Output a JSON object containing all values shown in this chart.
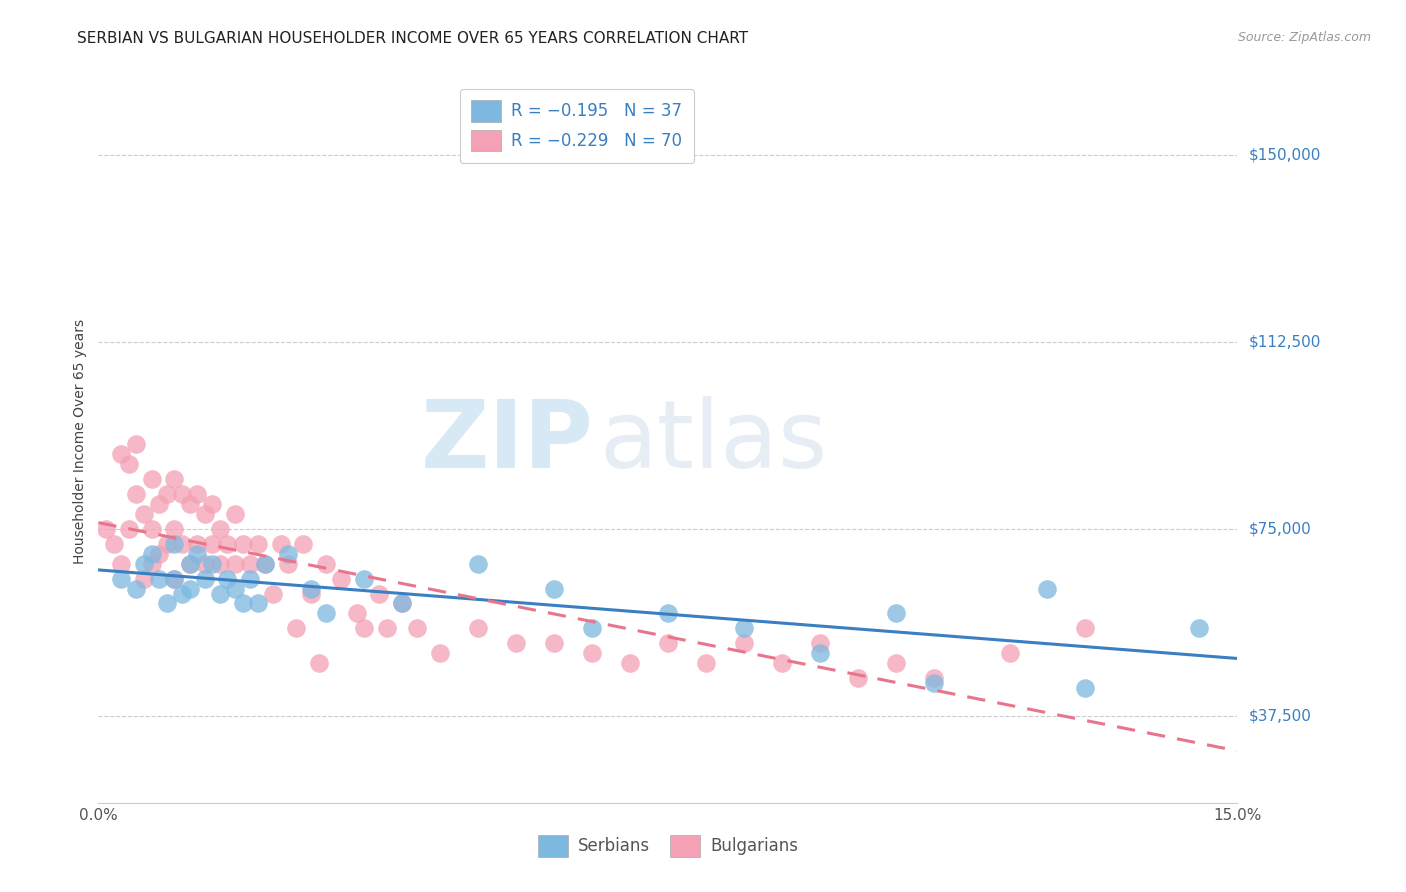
{
  "title": "SERBIAN VS BULGARIAN HOUSEHOLDER INCOME OVER 65 YEARS CORRELATION CHART",
  "source": "Source: ZipAtlas.com",
  "ylabel_ticks": [
    "$37,500",
    "$75,000",
    "$112,500",
    "$150,000"
  ],
  "ylabel_values": [
    37500,
    75000,
    112500,
    150000
  ],
  "xlim": [
    0.0,
    0.15
  ],
  "ylim": [
    20000,
    165000
  ],
  "ylabel": "Householder Income Over 65 years",
  "legend_entry1": "R = −0.195   N = 37",
  "legend_entry2": "R = −0.229   N = 70",
  "legend_label1": "Serbians",
  "legend_label2": "Bulgarians",
  "color_serbian": "#7db8e0",
  "color_bulgarian": "#f4a0b5",
  "color_line_serbian": "#3a7fc1",
  "color_line_bulgarian": "#e8758a",
  "watermark_zip": "ZIP",
  "watermark_atlas": "atlas",
  "title_fontsize": 11,
  "axis_label_fontsize": 10,
  "tick_fontsize": 11,
  "source_fontsize": 9,
  "serbian_x": [
    0.003,
    0.005,
    0.006,
    0.007,
    0.008,
    0.009,
    0.01,
    0.01,
    0.011,
    0.012,
    0.012,
    0.013,
    0.014,
    0.015,
    0.016,
    0.017,
    0.018,
    0.019,
    0.02,
    0.021,
    0.022,
    0.025,
    0.028,
    0.03,
    0.035,
    0.04,
    0.05,
    0.06,
    0.065,
    0.075,
    0.085,
    0.095,
    0.105,
    0.11,
    0.125,
    0.13,
    0.145
  ],
  "serbian_y": [
    65000,
    63000,
    68000,
    70000,
    65000,
    60000,
    72000,
    65000,
    62000,
    68000,
    63000,
    70000,
    65000,
    68000,
    62000,
    65000,
    63000,
    60000,
    65000,
    60000,
    68000,
    70000,
    63000,
    58000,
    65000,
    60000,
    68000,
    63000,
    55000,
    58000,
    55000,
    50000,
    58000,
    44000,
    63000,
    43000,
    55000
  ],
  "bulgarian_x": [
    0.001,
    0.002,
    0.003,
    0.003,
    0.004,
    0.004,
    0.005,
    0.005,
    0.006,
    0.006,
    0.007,
    0.007,
    0.007,
    0.008,
    0.008,
    0.009,
    0.009,
    0.01,
    0.01,
    0.01,
    0.011,
    0.011,
    0.012,
    0.012,
    0.013,
    0.013,
    0.014,
    0.014,
    0.015,
    0.015,
    0.016,
    0.016,
    0.017,
    0.018,
    0.018,
    0.019,
    0.02,
    0.021,
    0.022,
    0.023,
    0.024,
    0.025,
    0.026,
    0.027,
    0.028,
    0.029,
    0.03,
    0.032,
    0.034,
    0.035,
    0.037,
    0.038,
    0.04,
    0.042,
    0.045,
    0.05,
    0.055,
    0.06,
    0.065,
    0.07,
    0.075,
    0.08,
    0.085,
    0.09,
    0.095,
    0.1,
    0.105,
    0.11,
    0.12,
    0.13
  ],
  "bulgarian_y": [
    75000,
    72000,
    90000,
    68000,
    88000,
    75000,
    92000,
    82000,
    78000,
    65000,
    85000,
    75000,
    68000,
    80000,
    70000,
    82000,
    72000,
    85000,
    75000,
    65000,
    82000,
    72000,
    80000,
    68000,
    82000,
    72000,
    78000,
    68000,
    80000,
    72000,
    75000,
    68000,
    72000,
    78000,
    68000,
    72000,
    68000,
    72000,
    68000,
    62000,
    72000,
    68000,
    55000,
    72000,
    62000,
    48000,
    68000,
    65000,
    58000,
    55000,
    62000,
    55000,
    60000,
    55000,
    50000,
    55000,
    52000,
    52000,
    50000,
    48000,
    52000,
    48000,
    52000,
    48000,
    52000,
    45000,
    48000,
    45000,
    50000,
    55000
  ]
}
